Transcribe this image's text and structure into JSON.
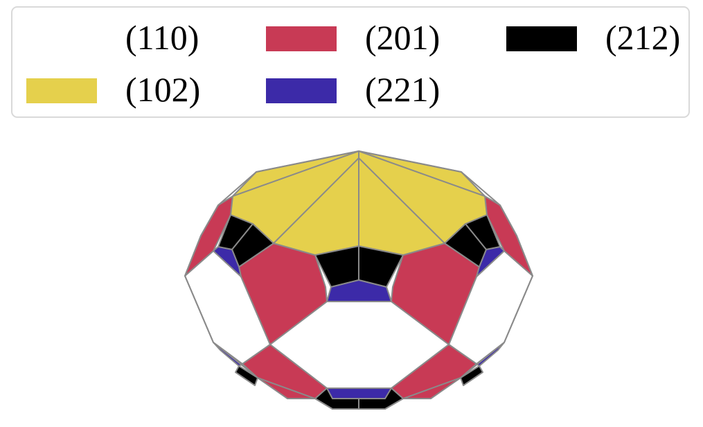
{
  "legend": {
    "items": [
      {
        "label": "(110)",
        "color": "#ffffff"
      },
      {
        "label": "(201)",
        "color": "#c83a55"
      },
      {
        "label": "(212)",
        "color": "#000000"
      },
      {
        "label": "(102)",
        "color": "#e5d04c"
      },
      {
        "label": "(221)",
        "color": "#3c2aa8"
      }
    ]
  },
  "figure": {
    "edge_color": "#8a8a8a",
    "face_types": [
      "(110)",
      "(201)",
      "(212)",
      "(102)",
      "(221)"
    ]
  }
}
